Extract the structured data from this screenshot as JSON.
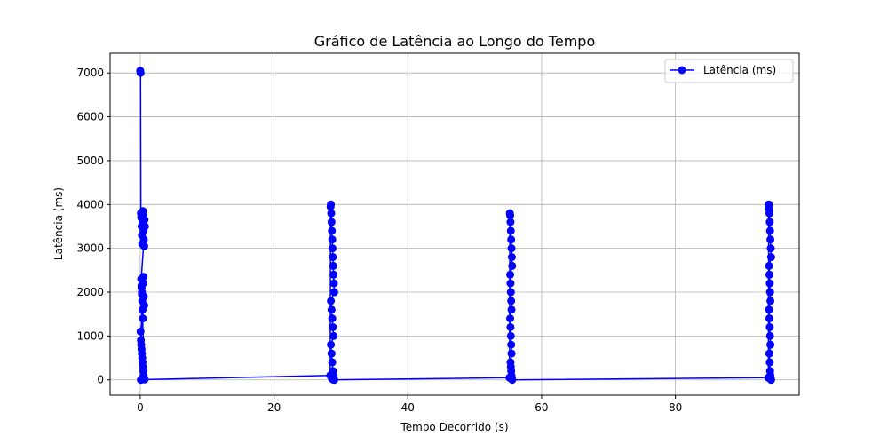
{
  "chart_data": {
    "type": "line",
    "title": "Gráfico de Latência ao Longo do Tempo",
    "xlabel": "Tempo Decorrido (s)",
    "ylabel": "Latência (ms)",
    "xlim": [
      -4.5,
      98.5
    ],
    "ylim": [
      -350,
      7450
    ],
    "xticks": [
      0,
      20,
      40,
      60,
      80
    ],
    "yticks": [
      0,
      1000,
      2000,
      3000,
      4000,
      5000,
      6000,
      7000
    ],
    "grid": true,
    "legend_position": "top-right",
    "series": [
      {
        "name": "Latência (ms)",
        "color": "#0000ff",
        "marker": "circle",
        "x": [
          0.0,
          0.05,
          0.1,
          0.15,
          0.2,
          0.25,
          0.3,
          0.35,
          0.4,
          0.45,
          0.5,
          0.55,
          0.6,
          0.65,
          0.7,
          0.15,
          0.2,
          0.25,
          0.3,
          0.35,
          0.4,
          0.45,
          0.5,
          0.55,
          0.6,
          0.05,
          0.1,
          0.15,
          0.2,
          0.25,
          0.3,
          0.35,
          0.4,
          0.45,
          0.5,
          0.55,
          0.6,
          0.65,
          0.2,
          0.25,
          0.1,
          0.15,
          28.4,
          28.45,
          28.5,
          28.55,
          28.6,
          28.65,
          28.7,
          28.75,
          28.8,
          28.85,
          28.9,
          28.95,
          29.0,
          28.5,
          28.6,
          28.7,
          28.8,
          28.9,
          28.5,
          28.6,
          28.7,
          28.8,
          28.9,
          28.6,
          28.7,
          28.8,
          28.9,
          29.0,
          55.2,
          55.25,
          55.3,
          55.35,
          55.4,
          55.45,
          55.5,
          55.55,
          55.6,
          55.3,
          55.35,
          55.4,
          55.45,
          55.5,
          55.3,
          55.35,
          55.4,
          55.45,
          55.5,
          55.35,
          55.4,
          55.45,
          55.5,
          55.55,
          55.6,
          93.9,
          93.95,
          94.0,
          94.05,
          94.1,
          94.15,
          94.2,
          94.25,
          94.3,
          94.0,
          94.05,
          94.1,
          94.15,
          94.2,
          94.0,
          94.05,
          94.1,
          94.15,
          94.2,
          94.05,
          94.1,
          94.15,
          94.2,
          94.25,
          94.3
        ],
        "y": [
          7050,
          7000,
          3800,
          3700,
          3500,
          3300,
          3100,
          3600,
          3850,
          3750,
          3400,
          3200,
          3050,
          3650,
          3500,
          2300,
          2100,
          2000,
          1800,
          1600,
          1400,
          2200,
          2350,
          1900,
          1700,
          1100,
          900,
          800,
          700,
          600,
          500,
          400,
          300,
          200,
          100,
          50,
          20,
          10,
          2150,
          1950,
          0,
          5,
          100,
          3950,
          4000,
          3800,
          3600,
          3400,
          3200,
          3000,
          2800,
          2600,
          2400,
          2200,
          2000,
          1800,
          1600,
          1400,
          1200,
          1000,
          800,
          600,
          400,
          200,
          100,
          50,
          20,
          10,
          5,
          0,
          50,
          3800,
          3750,
          3600,
          3400,
          3200,
          3000,
          2800,
          2600,
          2400,
          2200,
          2000,
          1800,
          1600,
          1400,
          1200,
          1000,
          800,
          600,
          400,
          300,
          200,
          100,
          50,
          0,
          50,
          4000,
          3900,
          3800,
          3600,
          3400,
          3200,
          3000,
          2800,
          2600,
          2400,
          2200,
          2000,
          1800,
          1600,
          1400,
          1200,
          1000,
          800,
          600,
          400,
          200,
          100,
          50,
          0
        ]
      }
    ]
  }
}
